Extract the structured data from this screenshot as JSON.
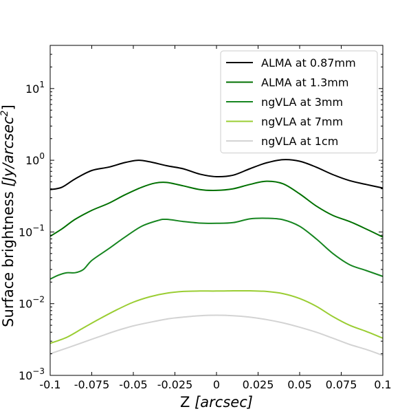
{
  "chart_data": {
    "type": "line",
    "title": "",
    "xlabel_main": "Z ",
    "xlabel_italic": "[arcsec]",
    "ylabel_main": "Surface brightness ",
    "ylabel_italic": "[Jy/arcsec",
    "ylabel_sup": "2",
    "ylabel_close": "]",
    "xlim": [
      -0.1,
      0.1
    ],
    "ylim": [
      0.001,
      40
    ],
    "yscale": "log",
    "grid": false,
    "legend_position": "top-right",
    "x_ticks": [
      {
        "value": -0.1,
        "label": "-0.1"
      },
      {
        "value": -0.075,
        "label": "-0.075"
      },
      {
        "value": -0.05,
        "label": "-0.05"
      },
      {
        "value": -0.025,
        "label": "-0.025"
      },
      {
        "value": 0,
        "label": "0"
      },
      {
        "value": 0.025,
        "label": "0.025"
      },
      {
        "value": 0.05,
        "label": "0.05"
      },
      {
        "value": 0.075,
        "label": "0.075"
      },
      {
        "value": 0.1,
        "label": "0.1"
      }
    ],
    "y_ticks": [
      {
        "value": 0.001,
        "base": "10",
        "exp": "−3"
      },
      {
        "value": 0.01,
        "base": "10",
        "exp": "−2"
      },
      {
        "value": 0.1,
        "base": "10",
        "exp": "−1"
      },
      {
        "value": 1,
        "base": "10",
        "exp": "0"
      },
      {
        "value": 10,
        "base": "10",
        "exp": "1"
      }
    ],
    "series": [
      {
        "name": "ALMA at 0.87mm",
        "color": "#000000",
        "x": [
          -0.1,
          -0.093,
          -0.085,
          -0.075,
          -0.065,
          -0.055,
          -0.047,
          -0.04,
          -0.03,
          -0.02,
          -0.01,
          0,
          0.01,
          0.02,
          0.03,
          0.04,
          0.05,
          0.06,
          0.07,
          0.08,
          0.09,
          0.1
        ],
        "y": [
          0.39,
          0.42,
          0.55,
          0.72,
          0.8,
          0.93,
          1.0,
          0.95,
          0.84,
          0.76,
          0.64,
          0.59,
          0.62,
          0.76,
          0.92,
          1.02,
          0.97,
          0.8,
          0.63,
          0.52,
          0.46,
          0.41
        ]
      },
      {
        "name": "ALMA at 1.3mm",
        "color": "#007000",
        "x": [
          -0.1,
          -0.093,
          -0.085,
          -0.075,
          -0.065,
          -0.055,
          -0.045,
          -0.037,
          -0.03,
          -0.02,
          -0.01,
          0,
          0.01,
          0.02,
          0.03,
          0.04,
          0.05,
          0.06,
          0.07,
          0.08,
          0.09,
          0.1
        ],
        "y": [
          0.087,
          0.11,
          0.15,
          0.2,
          0.25,
          0.33,
          0.42,
          0.48,
          0.49,
          0.44,
          0.39,
          0.38,
          0.4,
          0.46,
          0.51,
          0.47,
          0.34,
          0.23,
          0.17,
          0.14,
          0.11,
          0.085
        ]
      },
      {
        "name": "ngVLA at 3mm",
        "color": "#15851f",
        "x": [
          -0.1,
          -0.095,
          -0.09,
          -0.085,
          -0.08,
          -0.075,
          -0.065,
          -0.055,
          -0.045,
          -0.035,
          -0.03,
          -0.02,
          -0.01,
          0,
          0.01,
          0.02,
          0.03,
          0.04,
          0.05,
          0.06,
          0.07,
          0.08,
          0.09,
          0.1
        ],
        "y": [
          0.022,
          0.025,
          0.027,
          0.027,
          0.03,
          0.04,
          0.058,
          0.085,
          0.12,
          0.145,
          0.15,
          0.14,
          0.133,
          0.132,
          0.135,
          0.152,
          0.155,
          0.148,
          0.12,
          0.08,
          0.05,
          0.035,
          0.029,
          0.024
        ]
      },
      {
        "name": "ngVLA at 7mm",
        "color": "#9acd32",
        "x": [
          -0.1,
          -0.09,
          -0.08,
          -0.07,
          -0.06,
          -0.05,
          -0.04,
          -0.03,
          -0.02,
          -0.01,
          0,
          0.01,
          0.02,
          0.03,
          0.04,
          0.05,
          0.06,
          0.07,
          0.08,
          0.09,
          0.1
        ],
        "y": [
          0.0028,
          0.0034,
          0.0046,
          0.0062,
          0.0082,
          0.0105,
          0.0125,
          0.014,
          0.0148,
          0.015,
          0.015,
          0.0151,
          0.0151,
          0.0148,
          0.0138,
          0.0118,
          0.0092,
          0.0066,
          0.005,
          0.0041,
          0.0033
        ]
      },
      {
        "name": "ngVLA at 1cm",
        "color": "#d3d3d3",
        "x": [
          -0.1,
          -0.09,
          -0.08,
          -0.07,
          -0.06,
          -0.05,
          -0.04,
          -0.03,
          -0.02,
          -0.01,
          0,
          0.01,
          0.02,
          0.03,
          0.04,
          0.05,
          0.06,
          0.07,
          0.08,
          0.09,
          0.1
        ],
        "y": [
          0.002,
          0.0024,
          0.0029,
          0.0035,
          0.0042,
          0.0049,
          0.0055,
          0.0061,
          0.0065,
          0.0068,
          0.0069,
          0.0068,
          0.0065,
          0.006,
          0.0054,
          0.0047,
          0.004,
          0.0033,
          0.0027,
          0.0023,
          0.0019
        ]
      }
    ]
  }
}
